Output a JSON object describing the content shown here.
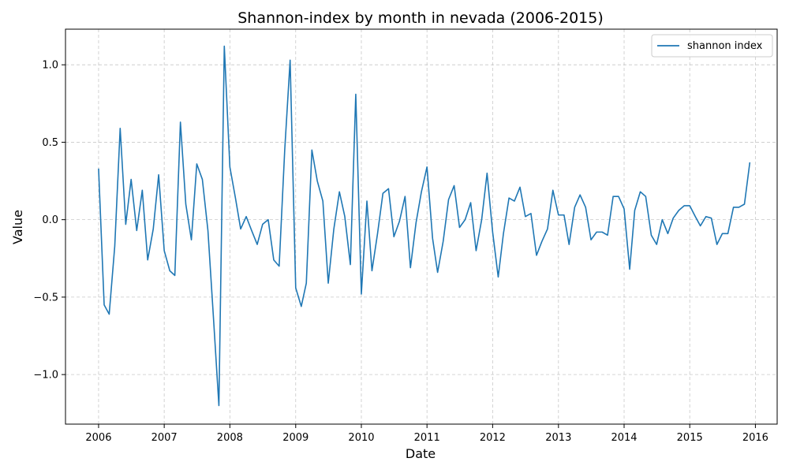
{
  "chart_data": {
    "type": "line",
    "title": "Shannon-index by month in nevada (2006-2015)",
    "xlabel": "Date",
    "ylabel": "Value",
    "xlim": [
      "2005-07-01",
      "2016-05-01"
    ],
    "ylim": [
      -1.32,
      1.23
    ],
    "x_ticks": [
      "2006",
      "2007",
      "2008",
      "2009",
      "2010",
      "2011",
      "2012",
      "2013",
      "2014",
      "2015",
      "2016"
    ],
    "y_ticks": [
      -1.0,
      -0.5,
      0.0,
      0.5,
      1.0
    ],
    "y_tick_labels": [
      "−1.0",
      "−0.5",
      "0.0",
      "0.5",
      "1.0"
    ],
    "grid": true,
    "legend_position": "top-right",
    "series": [
      {
        "name": "shannon index",
        "color": "#1f77b4",
        "x": [
          "2006-01",
          "2006-02",
          "2006-03",
          "2006-04",
          "2006-05",
          "2006-06",
          "2006-07",
          "2006-08",
          "2006-09",
          "2006-10",
          "2006-11",
          "2006-12",
          "2007-01",
          "2007-02",
          "2007-03",
          "2007-04",
          "2007-05",
          "2007-06",
          "2007-07",
          "2007-08",
          "2007-09",
          "2007-10",
          "2007-11",
          "2007-12",
          "2008-01",
          "2008-02",
          "2008-03",
          "2008-04",
          "2008-05",
          "2008-06",
          "2008-07",
          "2008-08",
          "2008-09",
          "2008-10",
          "2008-11",
          "2008-12",
          "2009-01",
          "2009-02",
          "2009-03",
          "2009-04",
          "2009-05",
          "2009-06",
          "2009-07",
          "2009-08",
          "2009-09",
          "2009-10",
          "2009-11",
          "2009-12",
          "2010-01",
          "2010-02",
          "2010-03",
          "2010-04",
          "2010-05",
          "2010-06",
          "2010-07",
          "2010-08",
          "2010-09",
          "2010-10",
          "2010-11",
          "2010-12",
          "2011-01",
          "2011-02",
          "2011-03",
          "2011-04",
          "2011-05",
          "2011-06",
          "2011-07",
          "2011-08",
          "2011-09",
          "2011-10",
          "2011-11",
          "2011-12",
          "2012-01",
          "2012-02",
          "2012-03",
          "2012-04",
          "2012-05",
          "2012-06",
          "2012-07",
          "2012-08",
          "2012-09",
          "2012-10",
          "2012-11",
          "2012-12",
          "2013-01",
          "2013-02",
          "2013-03",
          "2013-04",
          "2013-05",
          "2013-06",
          "2013-07",
          "2013-08",
          "2013-09",
          "2013-10",
          "2013-11",
          "2013-12",
          "2014-01",
          "2014-02",
          "2014-03",
          "2014-04",
          "2014-05",
          "2014-06",
          "2014-07",
          "2014-08",
          "2014-09",
          "2014-10",
          "2014-11",
          "2014-12",
          "2015-01",
          "2015-02",
          "2015-03",
          "2015-04",
          "2015-05",
          "2015-06",
          "2015-07",
          "2015-08",
          "2015-09",
          "2015-10",
          "2015-11",
          "2015-12"
        ],
        "y": [
          0.33,
          -0.55,
          -0.61,
          -0.17,
          0.59,
          -0.03,
          0.26,
          -0.07,
          0.19,
          -0.26,
          -0.06,
          0.29,
          -0.2,
          -0.33,
          -0.36,
          0.63,
          0.1,
          -0.13,
          0.36,
          0.26,
          -0.07,
          -0.62,
          -1.2,
          1.12,
          0.34,
          0.14,
          -0.06,
          0.02,
          -0.07,
          -0.16,
          -0.03,
          0.0,
          -0.26,
          -0.3,
          0.45,
          1.03,
          -0.44,
          -0.56,
          -0.41,
          0.45,
          0.25,
          0.12,
          -0.41,
          -0.06,
          0.18,
          0.02,
          -0.29,
          0.81,
          -0.48,
          0.12,
          -0.33,
          -0.09,
          0.17,
          0.2,
          -0.11,
          -0.01,
          0.15,
          -0.31,
          -0.02,
          0.18,
          0.34,
          -0.12,
          -0.34,
          -0.14,
          0.13,
          0.22,
          -0.05,
          0.0,
          0.11,
          -0.2,
          0.0,
          0.3,
          -0.08,
          -0.37,
          -0.09,
          0.14,
          0.12,
          0.21,
          0.02,
          0.04,
          -0.23,
          -0.14,
          -0.06,
          0.19,
          0.03,
          0.03,
          -0.16,
          0.08,
          0.16,
          0.08,
          -0.13,
          -0.08,
          -0.08,
          -0.1,
          0.15,
          0.15,
          0.07,
          -0.32,
          0.06,
          0.18,
          0.15,
          -0.1,
          -0.16,
          0.0,
          -0.09,
          0.01,
          0.06,
          0.09,
          0.09,
          0.02,
          -0.04,
          0.02,
          0.01,
          -0.16,
          -0.09,
          -0.09,
          0.08,
          0.08,
          0.1,
          0.37
        ]
      }
    ]
  }
}
